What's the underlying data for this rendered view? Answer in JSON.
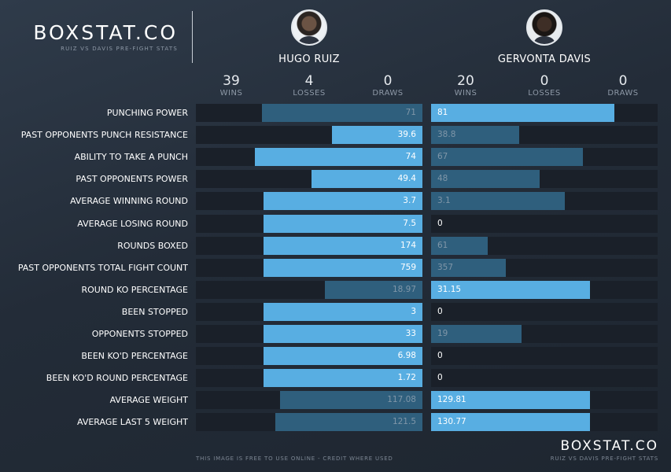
{
  "brand": {
    "title": "BOXSTAT.CO",
    "subtitle": "RUIZ VS DAVIS PRE-FIGHT STATS"
  },
  "fighters": {
    "left": {
      "name": "HUGO RUIZ",
      "record": [
        {
          "value": "39",
          "label": "WINS"
        },
        {
          "value": "4",
          "label": "LOSSES"
        },
        {
          "value": "0",
          "label": "DRAWS"
        }
      ]
    },
    "right": {
      "name": "GERVONTA DAVIS",
      "record": [
        {
          "value": "20",
          "label": "WINS"
        },
        {
          "value": "0",
          "label": "LOSSES"
        },
        {
          "value": "0",
          "label": "DRAWS"
        }
      ]
    }
  },
  "colors": {
    "winner_bar": "#58aee2",
    "loser_bar": "#2f5f7d",
    "track": "#1a2029"
  },
  "chart_data": {
    "type": "bar",
    "orientation": "horizontal-diverging",
    "categories": [
      "PUNCHING POWER",
      "PAST OPPONENTS PUNCH RESISTANCE",
      "ABILITY TO TAKE A PUNCH",
      "PAST OPPONENTS POWER",
      "AVERAGE WINNING ROUND",
      "AVERAGE LOSING ROUND",
      "ROUNDS BOXED",
      "PAST OPPONENTS TOTAL FIGHT COUNT",
      "ROUND KO PERCENTAGE",
      "BEEN STOPPED",
      "OPPONENTS STOPPED",
      "BEEN KO'D PERCENTAGE",
      "BEEN KO'D ROUND PERCENTAGE",
      "AVERAGE WEIGHT",
      "AVERAGE LAST 5 WEIGHT"
    ],
    "series": [
      {
        "name": "HUGO RUIZ",
        "values": [
          "71",
          "39.6",
          "74",
          "49.4",
          "3.7",
          "7.5",
          "174",
          "759",
          "18.97",
          "3",
          "33",
          "6.98",
          "1.72",
          "117.08",
          "121.5"
        ],
        "fill_fraction": [
          0.71,
          0.4,
          0.74,
          0.49,
          0.7,
          0.7,
          0.7,
          0.7,
          0.43,
          0.7,
          0.7,
          0.7,
          0.7,
          0.63,
          0.65
        ],
        "highlight": [
          false,
          true,
          true,
          true,
          true,
          true,
          true,
          true,
          false,
          true,
          true,
          true,
          true,
          false,
          false
        ]
      },
      {
        "name": "GERVONTA DAVIS",
        "values": [
          "81",
          "38.8",
          "67",
          "48",
          "3.1",
          "0",
          "61",
          "357",
          "31.15",
          "0",
          "19",
          "0",
          "0",
          "129.81",
          "130.77"
        ],
        "fill_fraction": [
          0.81,
          0.39,
          0.67,
          0.48,
          0.59,
          0,
          0.25,
          0.33,
          0.7,
          0,
          0.4,
          0,
          0,
          0.7,
          0.7
        ],
        "highlight": [
          true,
          false,
          false,
          false,
          false,
          true,
          false,
          false,
          true,
          true,
          false,
          true,
          true,
          true,
          true
        ]
      }
    ]
  },
  "footer": {
    "note": "THIS IMAGE IS FREE TO USE ONLINE - CREDIT WHERE USED",
    "brand": "BOXSTAT.CO",
    "subtitle": "RUIZ VS DAVIS PRE-FIGHT STATS"
  }
}
